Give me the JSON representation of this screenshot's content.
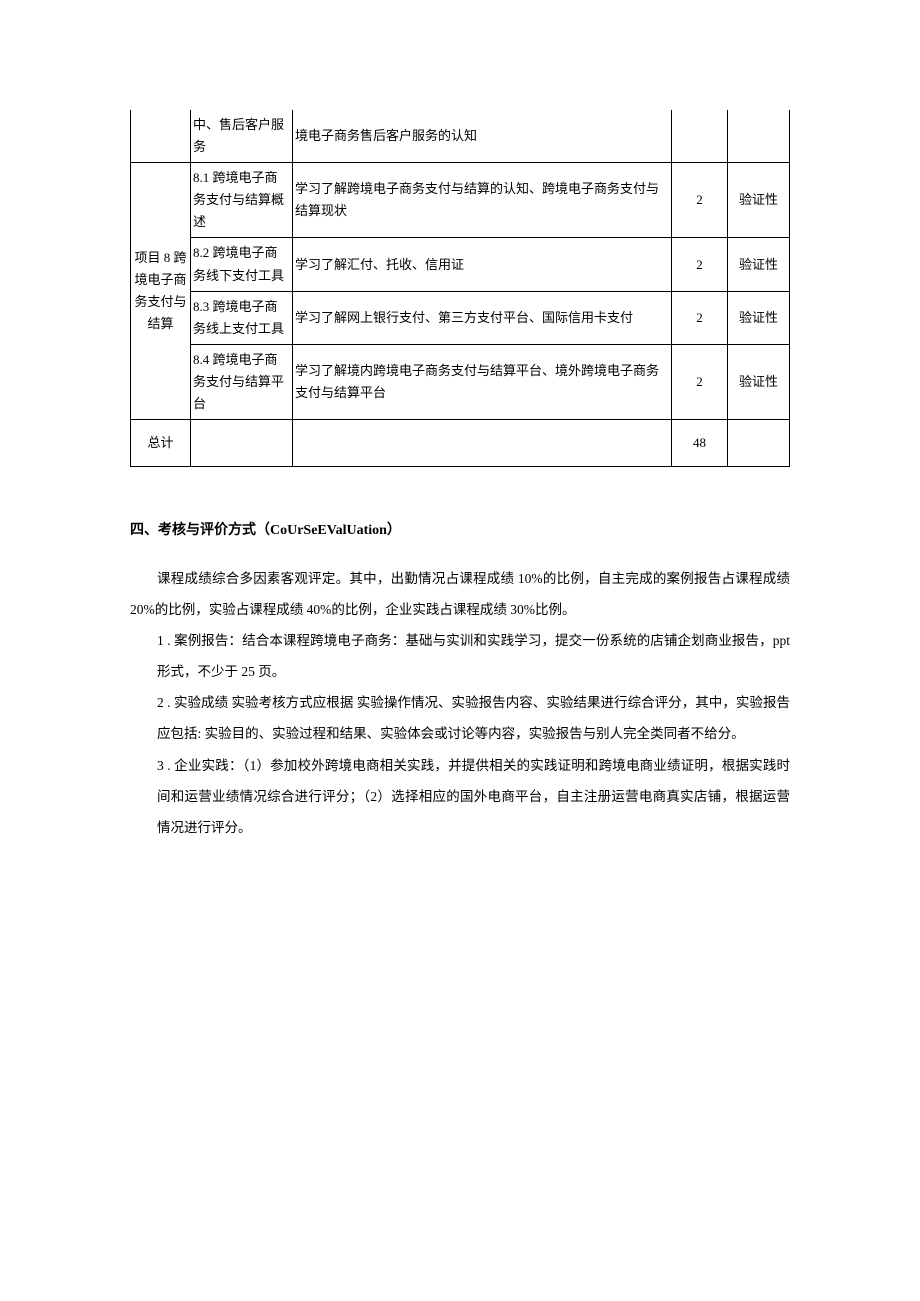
{
  "table": {
    "rows": [
      {
        "project": "",
        "section": "中、售后客户服务",
        "desc": "境电子商务售后客户服务的认知",
        "hours": "",
        "type": ""
      },
      {
        "project": "项目 8 跨境电子商务支付与结算",
        "section": "8.1 跨境电子商务支付与结算概述",
        "desc": "学习了解跨境电子商务支付与结算的认知、跨境电子商务支付与结算现状",
        "hours": "2",
        "type": "验证性"
      },
      {
        "section": "8.2 跨境电子商务线下支付工具",
        "desc": "学习了解汇付、托收、信用证",
        "hours": "2",
        "type": "验证性"
      },
      {
        "section": "8.3 跨境电子商务线上支付工具",
        "desc": "学习了解网上银行支付、第三方支付平台、国际信用卡支付",
        "hours": "2",
        "type": "验证性"
      },
      {
        "section": "8.4 跨境电子商务支付与结算平台",
        "desc": "学习了解境内跨境电子商务支付与结算平台、境外跨境电子商务支付与结算平台",
        "hours": "2",
        "type": "验证性"
      },
      {
        "project": "总计",
        "section": "",
        "desc": "",
        "hours": "48",
        "type": ""
      }
    ]
  },
  "section4": {
    "title": "四、考核与评价方式（CoUrSeEValUation）",
    "p1": "课程成绩综合多因素客观评定。其中，出勤情况占课程成绩 10%的比例，自主完成的案例报告占课程成绩 20%的比例，实验占课程成绩 40%的比例，企业实践占课程成绩 30%比例。",
    "p2": "1  . 案例报告：结合本课程跨境电子商务：基础与实训和实践学习，提交一份系统的店铺企划商业报告，ppt 形式，不少于 25 页。",
    "p3": "2  . 实验成绩  实验考核方式应根据  实验操作情况、实验报告内容、实验结果进行综合评分，其中，实验报告应包括: 实验目的、实验过程和结果、实验体会或讨论等内容，实验报告与别人完全类同者不给分。",
    "p4": "3      . 企业实践：（1）参加校外跨境电商相关实践，并提供相关的实践证明和跨境电商业绩证明，根据实践时间和运营业绩情况综合进行评分；（2）选择相应的国外电商平台，自主注册运营电商真实店铺，根据运营情况进行评分。"
  }
}
